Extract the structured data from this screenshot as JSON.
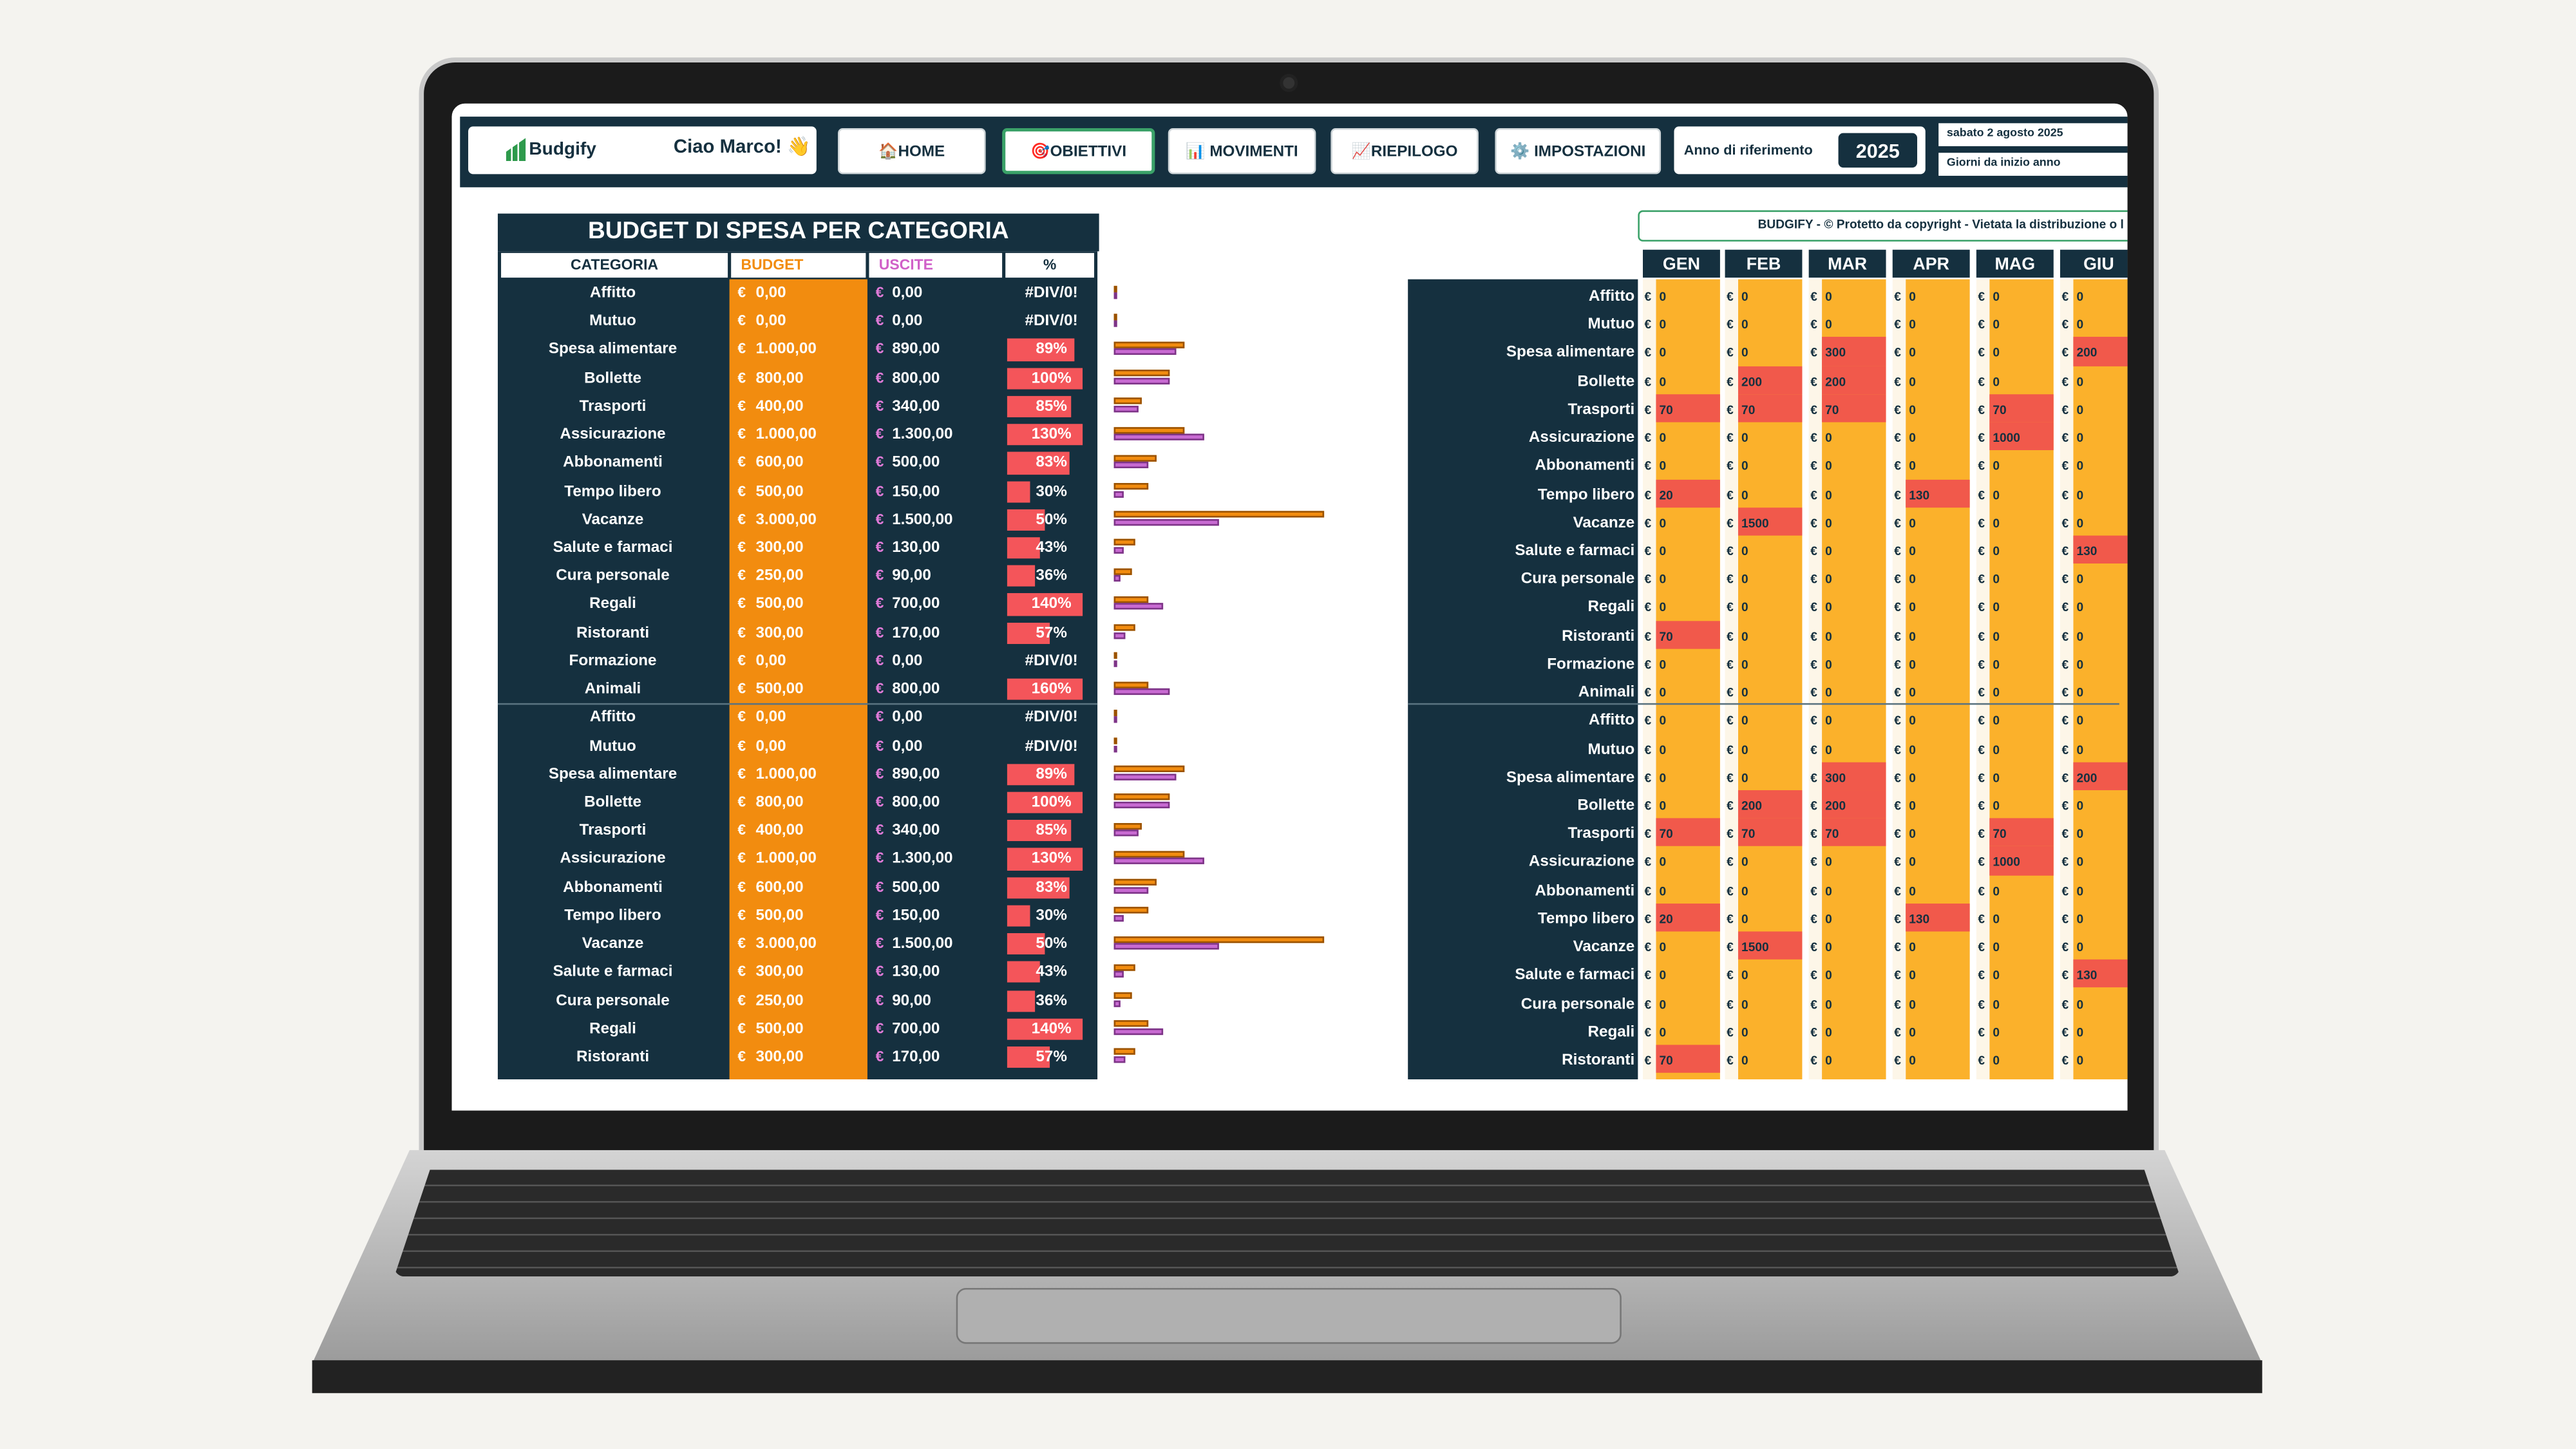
{
  "header": {
    "logo": "Budgify",
    "greeting": "Ciao Marco! 👋",
    "nav": [
      "🏠HOME",
      "🎯OBIETTIVI",
      "📊 MOVIMENTI",
      "📈RIEPILOGO",
      "⚙️ IMPOSTAZIONI"
    ],
    "year_label": "Anno di riferimento",
    "year": "2025",
    "date": "sabato 2 agosto 2025",
    "days_label": "Giorni da inizio anno"
  },
  "budget_table": {
    "title": "BUDGET DI SPESA PER CATEGORIA",
    "columns": [
      "CATEGORIA",
      "BUDGET",
      "USCITE",
      "%"
    ],
    "currency": "€",
    "rows": [
      {
        "category": "Affitto",
        "budget": 0,
        "budget_label": "0,00",
        "uscite": 0,
        "uscite_label": "0,00",
        "pct": null,
        "pct_label": "#DIV/0!"
      },
      {
        "category": "Mutuo",
        "budget": 0,
        "budget_label": "0,00",
        "uscite": 0,
        "uscite_label": "0,00",
        "pct": null,
        "pct_label": "#DIV/0!"
      },
      {
        "category": "Spesa alimentare",
        "budget": 1000,
        "budget_label": "1.000,00",
        "uscite": 890,
        "uscite_label": "890,00",
        "pct": 89,
        "pct_label": "89%"
      },
      {
        "category": "Bollette",
        "budget": 800,
        "budget_label": "800,00",
        "uscite": 800,
        "uscite_label": "800,00",
        "pct": 100,
        "pct_label": "100%"
      },
      {
        "category": "Trasporti",
        "budget": 400,
        "budget_label": "400,00",
        "uscite": 340,
        "uscite_label": "340,00",
        "pct": 85,
        "pct_label": "85%"
      },
      {
        "category": "Assicurazione",
        "budget": 1000,
        "budget_label": "1.000,00",
        "uscite": 1300,
        "uscite_label": "1.300,00",
        "pct": 130,
        "pct_label": "130%"
      },
      {
        "category": "Abbonamenti",
        "budget": 600,
        "budget_label": "600,00",
        "uscite": 500,
        "uscite_label": "500,00",
        "pct": 83,
        "pct_label": "83%"
      },
      {
        "category": "Tempo libero",
        "budget": 500,
        "budget_label": "500,00",
        "uscite": 150,
        "uscite_label": "150,00",
        "pct": 30,
        "pct_label": "30%"
      },
      {
        "category": "Vacanze",
        "budget": 3000,
        "budget_label": "3.000,00",
        "uscite": 1500,
        "uscite_label": "1.500,00",
        "pct": 50,
        "pct_label": "50%"
      },
      {
        "category": "Salute e farmaci",
        "budget": 300,
        "budget_label": "300,00",
        "uscite": 130,
        "uscite_label": "130,00",
        "pct": 43,
        "pct_label": "43%"
      },
      {
        "category": "Cura personale",
        "budget": 250,
        "budget_label": "250,00",
        "uscite": 90,
        "uscite_label": "90,00",
        "pct": 36,
        "pct_label": "36%"
      },
      {
        "category": "Regali",
        "budget": 500,
        "budget_label": "500,00",
        "uscite": 700,
        "uscite_label": "700,00",
        "pct": 140,
        "pct_label": "140%"
      },
      {
        "category": "Ristoranti",
        "budget": 300,
        "budget_label": "300,00",
        "uscite": 170,
        "uscite_label": "170,00",
        "pct": 57,
        "pct_label": "57%"
      },
      {
        "category": "Formazione",
        "budget": 0,
        "budget_label": "0,00",
        "uscite": 0,
        "uscite_label": "0,00",
        "pct": null,
        "pct_label": "#DIV/0!"
      },
      {
        "category": "Animali",
        "budget": 500,
        "budget_label": "500,00",
        "uscite": 800,
        "uscite_label": "800,00",
        "pct": 160,
        "pct_label": "160%"
      },
      {
        "category": "Affitto",
        "budget": 0,
        "budget_label": "0,00",
        "uscite": 0,
        "uscite_label": "0,00",
        "pct": null,
        "pct_label": "#DIV/0!"
      },
      {
        "category": "Mutuo",
        "budget": 0,
        "budget_label": "0,00",
        "uscite": 0,
        "uscite_label": "0,00",
        "pct": null,
        "pct_label": "#DIV/0!"
      },
      {
        "category": "Spesa alimentare",
        "budget": 1000,
        "budget_label": "1.000,00",
        "uscite": 890,
        "uscite_label": "890,00",
        "pct": 89,
        "pct_label": "89%"
      },
      {
        "category": "Bollette",
        "budget": 800,
        "budget_label": "800,00",
        "uscite": 800,
        "uscite_label": "800,00",
        "pct": 100,
        "pct_label": "100%"
      },
      {
        "category": "Trasporti",
        "budget": 400,
        "budget_label": "400,00",
        "uscite": 340,
        "uscite_label": "340,00",
        "pct": 85,
        "pct_label": "85%"
      },
      {
        "category": "Assicurazione",
        "budget": 1000,
        "budget_label": "1.000,00",
        "uscite": 1300,
        "uscite_label": "1.300,00",
        "pct": 130,
        "pct_label": "130%"
      },
      {
        "category": "Abbonamenti",
        "budget": 600,
        "budget_label": "600,00",
        "uscite": 500,
        "uscite_label": "500,00",
        "pct": 83,
        "pct_label": "83%"
      },
      {
        "category": "Tempo libero",
        "budget": 500,
        "budget_label": "500,00",
        "uscite": 150,
        "uscite_label": "150,00",
        "pct": 30,
        "pct_label": "30%"
      },
      {
        "category": "Vacanze",
        "budget": 3000,
        "budget_label": "3.000,00",
        "uscite": 1500,
        "uscite_label": "1.500,00",
        "pct": 50,
        "pct_label": "50%"
      },
      {
        "category": "Salute e farmaci",
        "budget": 300,
        "budget_label": "300,00",
        "uscite": 130,
        "uscite_label": "130,00",
        "pct": 43,
        "pct_label": "43%"
      },
      {
        "category": "Cura personale",
        "budget": 250,
        "budget_label": "250,00",
        "uscite": 90,
        "uscite_label": "90,00",
        "pct": 36,
        "pct_label": "36%"
      },
      {
        "category": "Regali",
        "budget": 500,
        "budget_label": "500,00",
        "uscite": 700,
        "uscite_label": "700,00",
        "pct": 140,
        "pct_label": "140%"
      },
      {
        "category": "Ristoranti",
        "budget": 300,
        "budget_label": "300,00",
        "uscite": 170,
        "uscite_label": "170,00",
        "pct": 57,
        "pct_label": "57%"
      }
    ]
  },
  "monthly_table": {
    "banner": "BUDGIFY - © Protetto da copyright - Vietata la distribuzione o l",
    "months": [
      "GEN",
      "FEB",
      "MAR",
      "APR",
      "MAG",
      "GIU"
    ],
    "currency": "€",
    "rows": [
      {
        "category": "Affitto",
        "values": [
          0,
          0,
          0,
          0,
          0,
          0
        ]
      },
      {
        "category": "Mutuo",
        "values": [
          0,
          0,
          0,
          0,
          0,
          0
        ]
      },
      {
        "category": "Spesa alimentare",
        "values": [
          0,
          0,
          300,
          0,
          0,
          200
        ]
      },
      {
        "category": "Bollette",
        "values": [
          0,
          200,
          200,
          0,
          0,
          0
        ]
      },
      {
        "category": "Trasporti",
        "values": [
          70,
          70,
          70,
          0,
          70,
          0
        ]
      },
      {
        "category": "Assicurazione",
        "values": [
          0,
          0,
          0,
          0,
          1000,
          0
        ]
      },
      {
        "category": "Abbonamenti",
        "values": [
          0,
          0,
          0,
          0,
          0,
          0
        ]
      },
      {
        "category": "Tempo libero",
        "values": [
          20,
          0,
          0,
          130,
          0,
          0
        ]
      },
      {
        "category": "Vacanze",
        "values": [
          0,
          1500,
          0,
          0,
          0,
          0
        ]
      },
      {
        "category": "Salute e farmaci",
        "values": [
          0,
          0,
          0,
          0,
          0,
          130
        ]
      },
      {
        "category": "Cura personale",
        "values": [
          0,
          0,
          0,
          0,
          0,
          0
        ]
      },
      {
        "category": "Regali",
        "values": [
          0,
          0,
          0,
          0,
          0,
          0
        ]
      },
      {
        "category": "Ristoranti",
        "values": [
          70,
          0,
          0,
          0,
          0,
          0
        ]
      },
      {
        "category": "Formazione",
        "values": [
          0,
          0,
          0,
          0,
          0,
          0
        ]
      },
      {
        "category": "Animali",
        "values": [
          0,
          0,
          0,
          0,
          0,
          0
        ]
      },
      {
        "category": "Affitto",
        "values": [
          0,
          0,
          0,
          0,
          0,
          0
        ]
      },
      {
        "category": "Mutuo",
        "values": [
          0,
          0,
          0,
          0,
          0,
          0
        ]
      },
      {
        "category": "Spesa alimentare",
        "values": [
          0,
          0,
          300,
          0,
          0,
          200
        ]
      },
      {
        "category": "Bollette",
        "values": [
          0,
          200,
          200,
          0,
          0,
          0
        ]
      },
      {
        "category": "Trasporti",
        "values": [
          70,
          70,
          70,
          0,
          70,
          0
        ]
      },
      {
        "category": "Assicurazione",
        "values": [
          0,
          0,
          0,
          0,
          1000,
          0
        ]
      },
      {
        "category": "Abbonamenti",
        "values": [
          0,
          0,
          0,
          0,
          0,
          0
        ]
      },
      {
        "category": "Tempo libero",
        "values": [
          20,
          0,
          0,
          130,
          0,
          0
        ]
      },
      {
        "category": "Vacanze",
        "values": [
          0,
          1500,
          0,
          0,
          0,
          0
        ]
      },
      {
        "category": "Salute e farmaci",
        "values": [
          0,
          0,
          0,
          0,
          0,
          130
        ]
      },
      {
        "category": "Cura personale",
        "values": [
          0,
          0,
          0,
          0,
          0,
          0
        ]
      },
      {
        "category": "Regali",
        "values": [
          0,
          0,
          0,
          0,
          0,
          0
        ]
      },
      {
        "category": "Ristoranti",
        "values": [
          70,
          0,
          0,
          0,
          0,
          0
        ]
      }
    ]
  }
}
